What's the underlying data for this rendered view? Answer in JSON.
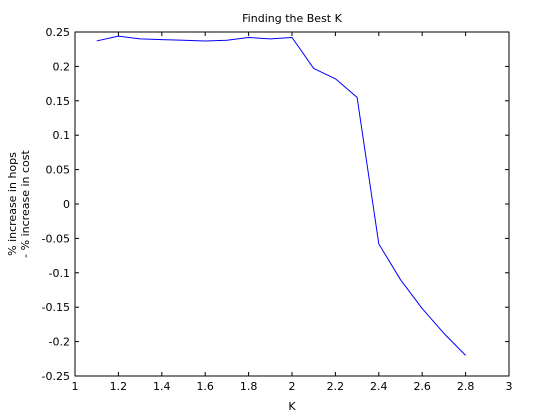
{
  "chart_data": {
    "type": "line",
    "title": "Finding the Best K",
    "xlabel": "K",
    "ylabel_lines": [
      "% increase in hops",
      "- % increase in cost"
    ],
    "xlim": [
      1,
      3
    ],
    "ylim": [
      -0.25,
      0.25
    ],
    "xticks": [
      1,
      1.2,
      1.4,
      1.6,
      1.8,
      2,
      2.2,
      2.4,
      2.6,
      2.8,
      3
    ],
    "xtick_labels": [
      "1",
      "1.2",
      "1.4",
      "1.6",
      "1.8",
      "2",
      "2.2",
      "2.4",
      "2.6",
      "2.8",
      "3"
    ],
    "yticks": [
      0.25,
      0.2,
      0.15,
      0.1,
      0.05,
      0,
      -0.05,
      -0.1,
      -0.15,
      -0.2,
      -0.25
    ],
    "ytick_labels": [
      "0.25",
      "0.2",
      "0.15",
      "0.1",
      "0.05",
      "0",
      "-0.05",
      "-0.1",
      "-0.15",
      "-0.2",
      "-0.25"
    ],
    "grid": false,
    "line_color": "#0000ff",
    "series": [
      {
        "x": [
          1.1,
          1.2,
          1.3,
          1.4,
          1.5,
          1.6,
          1.7,
          1.8,
          1.9,
          2.0,
          2.1,
          2.2,
          2.3,
          2.4,
          2.5,
          2.6,
          2.7,
          2.8
        ],
        "y": [
          0.237,
          0.244,
          0.24,
          0.239,
          0.238,
          0.237,
          0.238,
          0.242,
          0.24,
          0.242,
          0.197,
          0.182,
          0.155,
          -0.058,
          -0.11,
          -0.152,
          -0.188,
          -0.22
        ]
      }
    ]
  }
}
